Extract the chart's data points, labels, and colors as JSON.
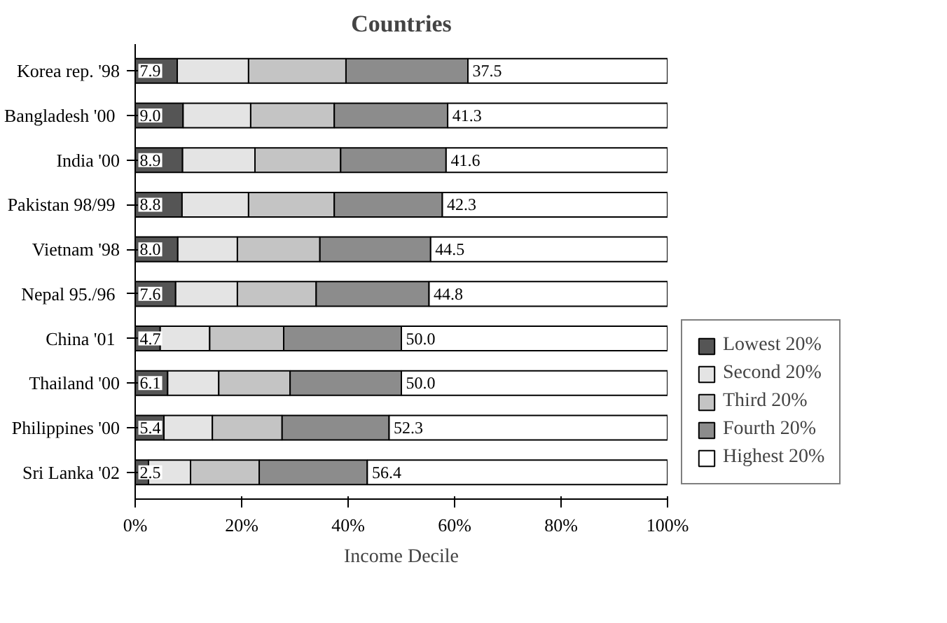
{
  "chart_data": {
    "type": "bar",
    "orientation": "horizontal",
    "stacked": true,
    "title": "Countries",
    "xlabel": "Income Decile",
    "categories": [
      "Korea rep. '98",
      "Bangladesh  '00",
      "India '00",
      "Pakistan  98/99",
      "Vietnam '98",
      "Nepal  95./96",
      "China  '01",
      "Thailand '00",
      "Philippines '00",
      "Sri Lanka '02"
    ],
    "series": [
      {
        "name": "Lowest 20%",
        "color": "#555555",
        "values": [
          7.9,
          9.0,
          8.9,
          8.8,
          8.0,
          7.6,
          4.7,
          6.1,
          5.4,
          2.5
        ],
        "value_labels": [
          "7.9",
          "9.0",
          "8.9",
          "8.8",
          "8.0",
          "7.6",
          "4.7",
          "6.1",
          "5.4",
          "2.5"
        ]
      },
      {
        "name": "Second 20%",
        "color": "#e4e4e4",
        "values": [
          13.4,
          12.7,
          13.6,
          12.5,
          11.2,
          11.6,
          9.3,
          9.6,
          9.1,
          7.9
        ]
      },
      {
        "name": "Third 20%",
        "color": "#c4c4c4",
        "values": [
          18.3,
          15.7,
          16.1,
          16.1,
          15.5,
          14.8,
          13.9,
          13.4,
          13.1,
          12.9
        ]
      },
      {
        "name": "Fourth 20%",
        "color": "#8c8c8c",
        "values": [
          22.9,
          21.3,
          19.8,
          20.3,
          20.8,
          21.2,
          22.1,
          20.9,
          20.1,
          20.3
        ]
      },
      {
        "name": "Highest 20%",
        "color": "#ffffff",
        "values": [
          37.5,
          41.3,
          41.6,
          42.3,
          44.5,
          44.8,
          50.0,
          50.0,
          52.3,
          56.4
        ],
        "value_labels": [
          "37.5",
          "41.3",
          "41.6",
          "42.3",
          "44.5",
          "44.8",
          "50.0",
          "50.0",
          "52.3",
          "56.4"
        ]
      }
    ],
    "xlim": [
      0,
      100
    ],
    "xticks": [
      {
        "value": 0,
        "label": "0%"
      },
      {
        "value": 20,
        "label": "20%"
      },
      {
        "value": 40,
        "label": "40%"
      },
      {
        "value": 60,
        "label": "60%"
      },
      {
        "value": 80,
        "label": "80%"
      },
      {
        "value": 100,
        "label": "100%"
      }
    ],
    "grid": false,
    "legend": "right"
  }
}
